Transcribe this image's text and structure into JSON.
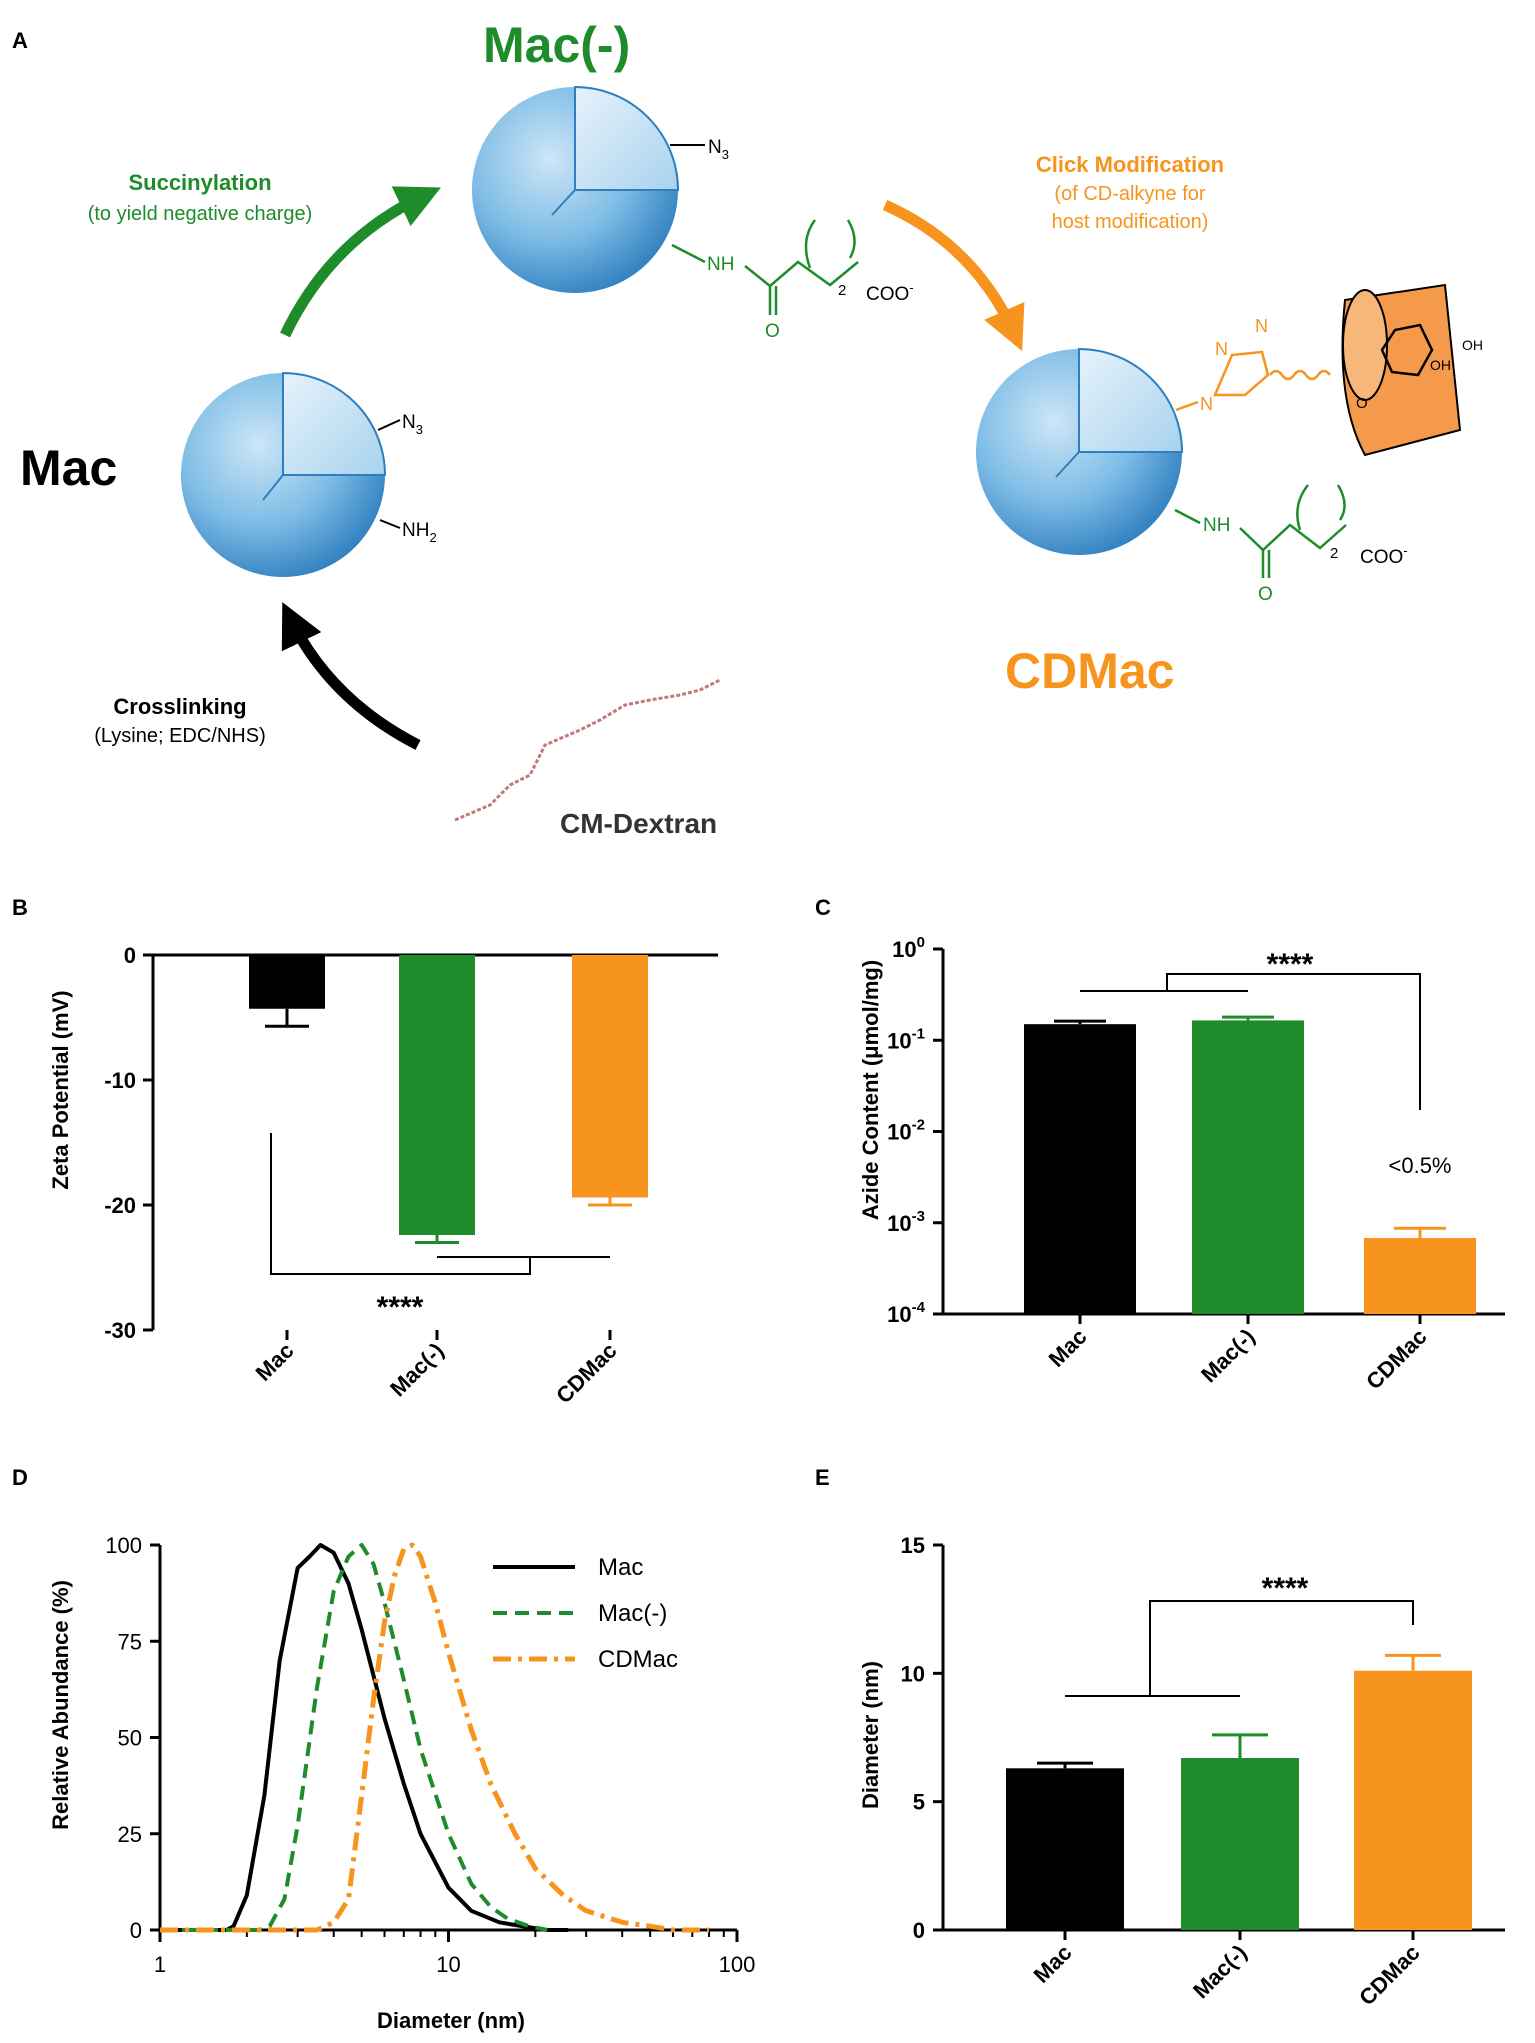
{
  "colors": {
    "mac": "#000000",
    "macneg": "#1e8c2a",
    "cdmac": "#f7941d",
    "sphere": "#5aa9de",
    "sphere_dark": "#2f7fc0"
  },
  "panelA": {
    "letter": "A",
    "mac_label": "Mac",
    "macneg_label": "Mac(-)",
    "cdmac_label": "CDMac",
    "succ_title": "Succinylation",
    "succ_sub": "(to yield negative charge)",
    "click_title": "Click Modification",
    "click_sub1": "(of CD-alkyne for",
    "click_sub2": "host modification)",
    "cross_title": "Crosslinking",
    "cross_sub": "(Lysine; EDC/NHS)",
    "cmdextran": "CM-Dextran",
    "n3": "N",
    "n3_sub": "3",
    "nh2": "NH",
    "nh2_sub": "2",
    "nh": "NH",
    "o": "O",
    "two": "2",
    "coo": "COO",
    "minus": "-",
    "n": "N",
    "oh": "OH"
  },
  "chart_data": [
    {
      "panel": "B",
      "type": "bar",
      "categories": [
        "Mac",
        "Mac(-)",
        "CDMac"
      ],
      "values": [
        -4.3,
        -22.4,
        -19.4
      ],
      "errors": [
        1.4,
        0.6,
        0.6
      ],
      "ylabel": "Zeta Potential (mV)",
      "ylim": [
        -30,
        0
      ],
      "yticks": [
        0,
        -10,
        -20,
        -30
      ],
      "ytick_labels": [
        "0",
        "-10",
        "-20",
        "-30"
      ],
      "annotation": "****"
    },
    {
      "panel": "C",
      "type": "bar",
      "scale": "log",
      "categories": [
        "Mac",
        "Mac(-)",
        "CDMac"
      ],
      "values": [
        0.15,
        0.165,
        0.00068
      ],
      "errors": [
        0.012,
        0.014,
        0.00019
      ],
      "ylabel": "Azide Content (μmol/mg)",
      "ylim": [
        0.0001,
        1
      ],
      "ytick_base": "10",
      "ytick_exponents": [
        "-4",
        "-3",
        "-2",
        "-1",
        "0"
      ],
      "annotation": "****",
      "bar_label": "<0.5%"
    },
    {
      "panel": "D",
      "type": "line",
      "scale": "log-x",
      "xlabel": "Diameter (nm)",
      "ylabel": "Relative Abundance (%)",
      "xlim": [
        1,
        100
      ],
      "ylim": [
        0,
        100
      ],
      "xticks": [
        "1",
        "10",
        "100"
      ],
      "yticks": [
        "0",
        "25",
        "50",
        "75",
        "100"
      ],
      "series": [
        {
          "name": "Mac",
          "style": "solid",
          "x": [
            1,
            1.7,
            1.8,
            2.0,
            2.3,
            2.6,
            3.0,
            3.3,
            3.6,
            4.0,
            4.5,
            5.0,
            6.0,
            7.0,
            8.0,
            10.0,
            12.0,
            15.0,
            18.0,
            22.0,
            26.0
          ],
          "y": [
            0,
            0,
            1,
            9,
            35,
            70,
            94,
            97,
            100,
            98,
            90,
            78,
            55,
            38,
            25,
            11,
            5,
            2,
            1,
            0,
            0
          ]
        },
        {
          "name": "Mac(-)",
          "style": "dashed",
          "x": [
            1,
            2.2,
            2.4,
            2.7,
            3.0,
            3.5,
            4.0,
            4.5,
            5.0,
            5.5,
            6.0,
            7.0,
            8.0,
            10.0,
            12.0,
            14.0,
            16.0,
            19.0,
            22.0
          ],
          "y": [
            0,
            0,
            1,
            8,
            27,
            63,
            88,
            97,
            100,
            95,
            85,
            65,
            47,
            25,
            12,
            6,
            3,
            1,
            0
          ]
        },
        {
          "name": "CDMac",
          "style": "dashdot",
          "x": [
            1,
            3.5,
            4.0,
            4.5,
            5.0,
            5.5,
            6.0,
            6.5,
            7.0,
            7.5,
            8.0,
            9.0,
            10.0,
            12.0,
            14.0,
            17.0,
            20.0,
            25.0,
            30.0,
            40.0,
            50.0,
            60.0,
            80.0
          ],
          "y": [
            0,
            0,
            2,
            8,
            35,
            60,
            80,
            92,
            99,
            100,
            97,
            85,
            72,
            52,
            38,
            25,
            16,
            9,
            5,
            2,
            1,
            0,
            0
          ]
        }
      ]
    },
    {
      "panel": "E",
      "type": "bar",
      "categories": [
        "Mac",
        "Mac(-)",
        "CDMac"
      ],
      "values": [
        6.3,
        6.7,
        10.1
      ],
      "errors": [
        0.2,
        0.9,
        0.6
      ],
      "ylabel": "Diameter (nm)",
      "ylim": [
        0,
        15
      ],
      "yticks": [
        0,
        5,
        10,
        15
      ],
      "ytick_labels": [
        "0",
        "5",
        "10",
        "15"
      ],
      "annotation": "****"
    }
  ]
}
